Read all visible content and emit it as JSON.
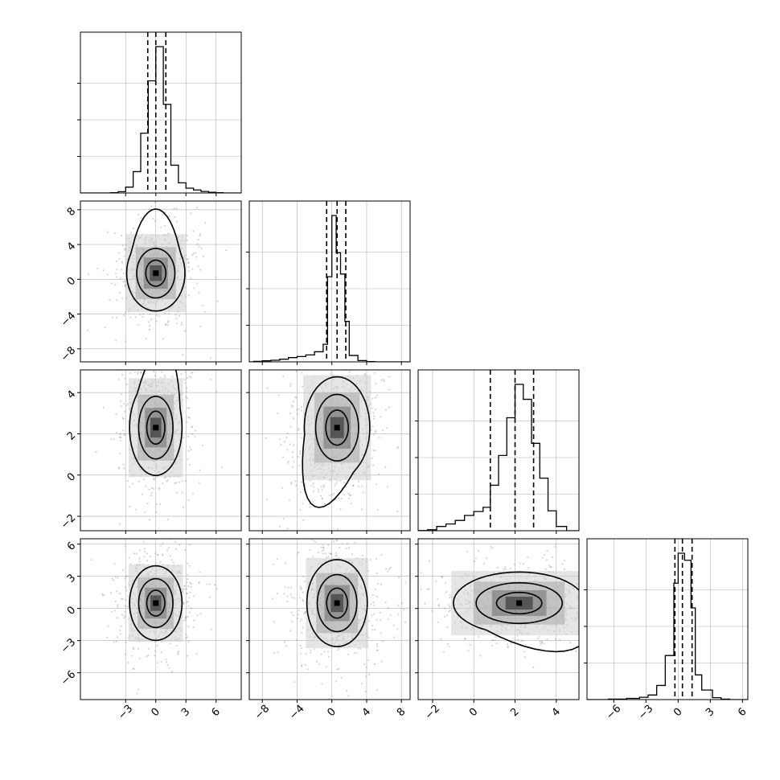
{
  "chart_data": {
    "type": "corner",
    "title": "",
    "grid": true,
    "style": {
      "frame_color": "#000000",
      "grid_color": "#b0b0b0",
      "hist_color": "#000000",
      "scatter_color": "#888888",
      "density_color": "#000000"
    },
    "parameters": [
      {
        "range": [
          -7.5,
          8.5
        ],
        "ticks": [
          -3,
          0,
          3,
          6
        ],
        "tick_labels": [
          "−3",
          "0",
          "3",
          "6"
        ],
        "quantile_lines": [
          -0.8,
          0.0,
          1.0
        ],
        "histogram": {
          "bins": [
            -4.5,
            -3.75,
            -3.0,
            -2.25,
            -1.5,
            -0.75,
            0.0,
            0.75,
            1.5,
            2.25,
            3.0,
            3.75,
            4.5,
            5.25,
            6.0
          ],
          "counts": [
            3,
            12,
            55,
            200,
            560,
            1050,
            1370,
            830,
            260,
            95,
            45,
            28,
            14,
            6,
            3
          ]
        }
      },
      {
        "range": [
          -9.5,
          9.0
        ],
        "ticks": [
          -8,
          -4,
          0,
          4,
          8
        ],
        "tick_labels": [
          "−8",
          "−4",
          "0",
          "4",
          "8"
        ],
        "quantile_lines": [
          -0.6,
          0.6,
          1.6
        ],
        "histogram": {
          "bins": [
            -9.0,
            -8.0,
            -7.0,
            -6.0,
            -5.0,
            -4.0,
            -3.0,
            -2.0,
            -1.0,
            -0.5,
            0.0,
            0.5,
            1.0,
            1.5,
            2.0,
            3.0,
            4.0
          ],
          "counts": [
            10,
            20,
            30,
            50,
            80,
            100,
            130,
            190,
            330,
            1600,
            2750,
            2050,
            1650,
            760,
            120,
            25,
            5
          ]
        }
      },
      {
        "range": [
          -2.7,
          5.1
        ],
        "ticks": [
          -2,
          0,
          2,
          4
        ],
        "tick_labels": [
          "−2",
          "0",
          "2",
          "4"
        ],
        "quantile_lines": [
          0.8,
          2.0,
          2.9
        ],
        "histogram": {
          "bins": [
            -2.7,
            -2.25,
            -1.8,
            -1.35,
            -0.9,
            -0.45,
            0.0,
            0.45,
            0.8,
            1.2,
            1.6,
            2.0,
            2.4,
            2.8,
            3.2,
            3.6,
            4.0,
            4.5
          ],
          "counts": [
            2,
            14,
            60,
            95,
            145,
            215,
            270,
            330,
            640,
            1060,
            1590,
            2060,
            1850,
            1230,
            740,
            280,
            60
          ]
        }
      },
      {
        "range": [
          -8.5,
          6.5
        ],
        "ticks": [
          -6,
          -3,
          0,
          3,
          6
        ],
        "tick_labels": [
          "−6",
          "−3",
          "0",
          "3",
          "6"
        ],
        "quantile_lines": [
          -0.3,
          0.4,
          1.3
        ],
        "histogram": {
          "bins": [
            -6.5,
            -4.8,
            -3.6,
            -2.8,
            -2.0,
            -1.2,
            -0.4,
            0.0,
            0.6,
            1.2,
            1.6,
            2.2,
            3.2,
            4.0,
            4.8
          ],
          "counts": [
            15,
            35,
            65,
            130,
            400,
            1250,
            3300,
            4150,
            3950,
            2600,
            700,
            270,
            55,
            15
          ]
        }
      }
    ],
    "density_peaks": [
      {
        "x": 0,
        "y": 1,
        "cx": 0.0,
        "cy": 0.7,
        "sx": 1.0,
        "sy": 1.5,
        "tail": [
          0.0,
          1.0,
          -2.5
        ],
        "diag": [
          0.0,
          0.0,
          0.0,
          0.0
        ]
      },
      {
        "x": 0,
        "y": 2,
        "cx": 0.0,
        "cy": 2.3,
        "sx": 0.9,
        "sy": 0.8,
        "tail": [
          0.3,
          1.5,
          0.0
        ],
        "diag": [
          0.0,
          0.0,
          0.0,
          0.0
        ]
      },
      {
        "x": 1,
        "y": 2,
        "cx": 0.6,
        "cy": 2.3,
        "sx": 1.3,
        "sy": 0.85,
        "tail": [
          -1.2,
          -2.5,
          -0.1
        ],
        "diag": [
          0.0,
          0.0,
          0.0,
          0.0
        ]
      },
      {
        "x": 0,
        "y": 3,
        "cx": 0.0,
        "cy": 0.5,
        "sx": 0.9,
        "sy": 1.2,
        "tail": [
          0.0,
          0.0,
          0.0
        ],
        "diag": [
          0.0,
          0.0,
          0.0,
          0.0
        ]
      },
      {
        "x": 1,
        "y": 3,
        "cx": 0.6,
        "cy": 0.5,
        "sx": 1.2,
        "sy": 1.4,
        "tail": [
          0.0,
          0.0,
          0.0
        ],
        "diag": [
          0.0,
          0.0,
          0.0,
          0.0
        ]
      },
      {
        "x": 2,
        "y": 3,
        "cx": 2.2,
        "cy": 0.5,
        "sx": 1.1,
        "sy": 1.0,
        "tail": [
          0.6,
          -1.2,
          0.0
        ],
        "diag": [
          0.0,
          0.0,
          0.0,
          0.0
        ]
      }
    ]
  }
}
